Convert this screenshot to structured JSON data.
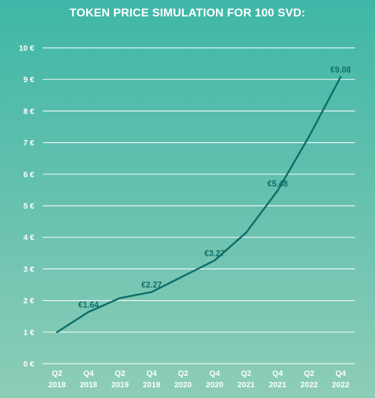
{
  "chart_data": {
    "type": "line",
    "title": "TOKEN PRICE SIMULATION FOR 100 SVD:",
    "xlabel": "",
    "ylabel": "",
    "ylim": [
      0,
      10
    ],
    "y_ticks": [
      "0 €",
      "1 €",
      "2 €",
      "3 €",
      "4 €",
      "5 €",
      "6 €",
      "7 €",
      "8 €",
      "9 €",
      "10 €"
    ],
    "categories": [
      [
        "Q2",
        "2018"
      ],
      [
        "Q4",
        "2018"
      ],
      [
        "Q2",
        "2019"
      ],
      [
        "Q4",
        "2019"
      ],
      [
        "Q2",
        "2020"
      ],
      [
        "Q4",
        "2020"
      ],
      [
        "Q2",
        "2021"
      ],
      [
        "Q4",
        "2021"
      ],
      [
        "Q2",
        "2022"
      ],
      [
        "Q4",
        "2022"
      ]
    ],
    "values": [
      1.0,
      1.64,
      2.08,
      2.27,
      2.77,
      3.27,
      4.15,
      5.48,
      7.2,
      9.08
    ],
    "annotations": [
      {
        "index": 1,
        "text": "€1.64"
      },
      {
        "index": 3,
        "text": "€2.27"
      },
      {
        "index": 5,
        "text": "€3.27"
      },
      {
        "index": 7,
        "text": "€5.48"
      },
      {
        "index": 9,
        "text": "€9.08"
      }
    ],
    "grid": true,
    "colors": {
      "line": "#0e6f69",
      "label": "#0e6f69",
      "grid": "#ffffff",
      "axis_text": "#ffffff"
    }
  }
}
